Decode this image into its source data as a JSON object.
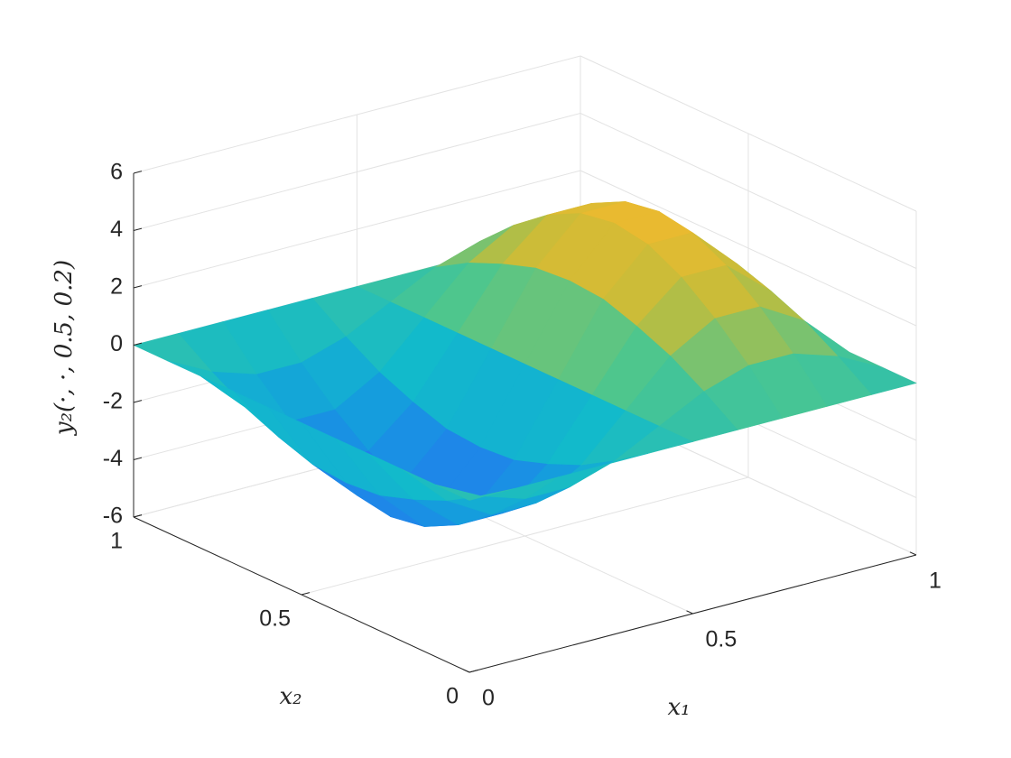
{
  "chart_data": {
    "type": "surface",
    "xlabel": "x₁",
    "ylabel": "x₂",
    "zlabel": "y₂(·, ·, 0.5, 0.2)",
    "x": [
      0,
      0.1,
      0.2,
      0.3,
      0.4,
      0.5,
      0.6,
      0.7,
      0.8,
      0.9,
      1
    ],
    "y": [
      0,
      0.1,
      0.2,
      0.3,
      0.4,
      0.5,
      0.6,
      0.7,
      0.8,
      0.9,
      1
    ],
    "z": [
      [
        0,
        0,
        0,
        0,
        0,
        0,
        0,
        0,
        0,
        0,
        0
      ],
      [
        0,
        -0.8,
        -1.5,
        -2.0,
        -2.4,
        -2.5,
        -2.4,
        -2.0,
        -1.5,
        -0.8,
        0
      ],
      [
        0,
        -1.3,
        -2.4,
        -3.3,
        -3.9,
        -4.1,
        -3.9,
        -3.3,
        -2.4,
        -1.3,
        0
      ],
      [
        0,
        -1.3,
        -2.4,
        -3.3,
        -3.9,
        -4.1,
        -3.9,
        -3.3,
        -2.4,
        -1.3,
        0
      ],
      [
        0,
        -0.8,
        -1.5,
        -2.0,
        -2.4,
        -2.5,
        -2.4,
        -2.0,
        -1.5,
        -0.8,
        0
      ],
      [
        0,
        0,
        0,
        0,
        0,
        0,
        0,
        0,
        0,
        0,
        0
      ],
      [
        0,
        0.8,
        1.5,
        2.0,
        2.4,
        2.5,
        2.4,
        2.0,
        1.5,
        0.8,
        0
      ],
      [
        0,
        1.3,
        2.4,
        3.3,
        3.9,
        4.1,
        3.9,
        3.3,
        2.4,
        1.3,
        0
      ],
      [
        0,
        1.3,
        2.4,
        3.3,
        3.9,
        4.1,
        3.9,
        3.3,
        2.4,
        1.3,
        0
      ],
      [
        0,
        0.8,
        1.5,
        2.0,
        2.4,
        2.5,
        2.4,
        2.0,
        1.5,
        0.8,
        0
      ],
      [
        0,
        0,
        0,
        0,
        0,
        0,
        0,
        0,
        0,
        0,
        0
      ]
    ],
    "xlim": [
      0,
      1
    ],
    "ylim": [
      0,
      1
    ],
    "zlim": [
      -6,
      6
    ],
    "xticks": [
      0,
      0.5,
      1
    ],
    "yticks": [
      0,
      0.5,
      1
    ],
    "zticks": [
      -6,
      -4,
      -2,
      0,
      2,
      4,
      6
    ],
    "grid": true,
    "colormap": [
      "#3e26a8",
      "#2a6cf4",
      "#1698e0",
      "#12bacb",
      "#4dc68e",
      "#c4bc3a",
      "#f0ba2e",
      "#f9fb15"
    ]
  }
}
